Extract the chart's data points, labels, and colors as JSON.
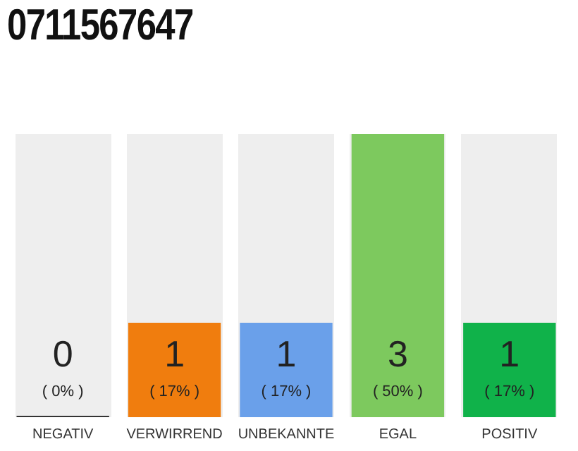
{
  "chart_data": {
    "type": "bar",
    "title": "0711567647",
    "categories": [
      "NEGATIV",
      "VERWIRREND",
      "UNBEKANNTE",
      "EGAL",
      "POSITIV"
    ],
    "values": [
      0,
      1,
      1,
      3,
      1
    ],
    "colors": [
      "#333333",
      "#f07d0e",
      "#6aa0ea",
      "#7dc95e",
      "#10b24a"
    ],
    "ylim": [
      0,
      3
    ],
    "tick_labels": "x",
    "grid": false,
    "legend": false,
    "data_labels": true,
    "annotations": [
      "( 0% )",
      "( 17% )",
      "( 17% )",
      "( 50% )",
      "( 17% )"
    ]
  }
}
